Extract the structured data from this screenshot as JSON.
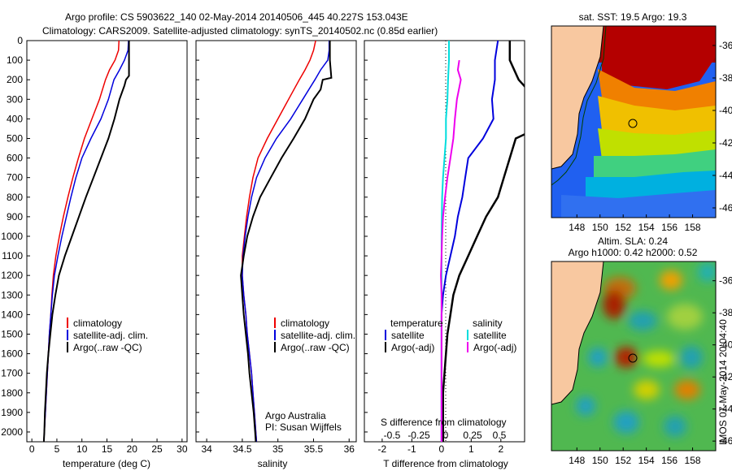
{
  "header": {
    "line1": "Argo profile: CS 5903622_140 02-May-2014 20140506_445 40.227S 153.043E",
    "line2": "Climatology: CARS2009. Satellite-adjusted climatology: synTS_20140502.nc (0.85d earlier)"
  },
  "colors": {
    "climatology": "#ee0000",
    "satellite": "#0000dd",
    "argo": "#000000",
    "sal_satellite": "#00dddd",
    "sal_argo": "#ee00ee",
    "land": "#f8c8a0"
  },
  "depth_ticks": [
    "0",
    "100",
    "200",
    "300",
    "400",
    "500",
    "600",
    "700",
    "800",
    "900",
    "1000",
    "1100",
    "1200",
    "1300",
    "1400",
    "1500",
    "1600",
    "1700",
    "1800",
    "1900",
    "2000"
  ],
  "panels": {
    "temperature": {
      "xlabel": "temperature (deg C)",
      "ticks": [
        "0",
        "5",
        "10",
        "15",
        "20",
        "25",
        "30"
      ]
    },
    "salinity": {
      "xlabel": "salinity",
      "ticks": [
        "34",
        "34.5",
        "35",
        "35.5",
        "36"
      ],
      "credit1": "Argo Australia",
      "credit2": "PI: Susan Wijffels"
    },
    "difference": {
      "xlabel_bottom": "T difference from climatology",
      "xlabel_top": "S difference from climatology",
      "t_ticks": [
        "-2",
        "-1",
        "0",
        "1",
        "2"
      ],
      "s_ticks": [
        "-0.5",
        "-0.25",
        "0",
        "0.25",
        "0.5"
      ]
    }
  },
  "legend": {
    "climatology": "climatology",
    "satellite_adj": "satellite-adj. clim.",
    "argo": "Argo(..raw -QC)",
    "temperature_head": "temperature",
    "salinity_head": "salinity",
    "satellite": "satellite",
    "argo_adj": "Argo(-adj)"
  },
  "maps": {
    "sst": {
      "title": "sat. SST: 19.5  Argo: 19.3",
      "lat_ticks": [
        "-36",
        "-38",
        "-40",
        "-42",
        "-44",
        "-46"
      ],
      "lon_ticks": [
        "148",
        "150",
        "152",
        "154",
        "156",
        "158"
      ]
    },
    "sla": {
      "title1": "Altim. SLA: 0.24",
      "title2": "Argo h1000: 0.42  h2000: 0.52",
      "lat_ticks": [
        "-36",
        "-38",
        "-40",
        "-42",
        "-44",
        "-46"
      ],
      "lon_ticks": [
        "148",
        "150",
        "152",
        "154",
        "156",
        "158"
      ]
    }
  },
  "stamp": "IMOS 07-May-2014 20:04:40",
  "chart_data": [
    {
      "type": "line",
      "title": "",
      "xlabel": "temperature (deg C)",
      "ylabel": "",
      "xlim": [
        -1,
        31
      ],
      "ylim": [
        2050,
        0
      ],
      "series": [
        {
          "name": "climatology",
          "points": [
            [
              17.4,
              0
            ],
            [
              17.3,
              50
            ],
            [
              16.6,
              100
            ],
            [
              15.5,
              150
            ],
            [
              14.7,
              200
            ],
            [
              13.5,
              300
            ],
            [
              12,
              400
            ],
            [
              10.5,
              500
            ],
            [
              9.3,
              600
            ],
            [
              8.2,
              700
            ],
            [
              7.2,
              800
            ],
            [
              6.3,
              900
            ],
            [
              5.5,
              1000
            ],
            [
              4.8,
              1100
            ],
            [
              4.3,
              1200
            ],
            [
              4,
              1300
            ],
            [
              3.8,
              1400
            ],
            [
              3.5,
              1500
            ],
            [
              3.3,
              1600
            ],
            [
              3.1,
              1700
            ],
            [
              2.9,
              1800
            ],
            [
              2.7,
              1900
            ],
            [
              2.5,
              2000
            ],
            [
              2.4,
              2050
            ]
          ]
        },
        {
          "name": "satellite-adj. clim.",
          "points": [
            [
              19.3,
              0
            ],
            [
              19.2,
              50
            ],
            [
              18.5,
              100
            ],
            [
              17.5,
              150
            ],
            [
              16.4,
              200
            ],
            [
              15.3,
              300
            ],
            [
              13.8,
              400
            ],
            [
              11.8,
              500
            ],
            [
              10,
              600
            ],
            [
              8.8,
              700
            ],
            [
              7.8,
              800
            ],
            [
              6.9,
              900
            ],
            [
              6,
              1000
            ],
            [
              5.2,
              1100
            ],
            [
              4.5,
              1200
            ],
            [
              4.1,
              1300
            ],
            [
              3.8,
              1400
            ],
            [
              3.5,
              1500
            ],
            [
              3.3,
              1600
            ],
            [
              3.1,
              1700
            ],
            [
              2.9,
              1800
            ],
            [
              2.7,
              1900
            ],
            [
              2.5,
              2000
            ],
            [
              2.4,
              2050
            ]
          ]
        },
        {
          "name": "Argo(..raw -QC)",
          "points": [
            [
              19.4,
              0
            ],
            [
              19.4,
              30
            ],
            [
              19.4,
              100
            ],
            [
              19.4,
              180
            ],
            [
              18.8,
              200
            ],
            [
              18.5,
              230
            ],
            [
              17.5,
              300
            ],
            [
              16.5,
              400
            ],
            [
              15.3,
              500
            ],
            [
              13.8,
              600
            ],
            [
              12.3,
              700
            ],
            [
              10.8,
              800
            ],
            [
              9.4,
              900
            ],
            [
              8,
              1000
            ],
            [
              6.6,
              1100
            ],
            [
              5.4,
              1200
            ],
            [
              4.7,
              1300
            ],
            [
              4.1,
              1400
            ],
            [
              3.7,
              1500
            ],
            [
              3.3,
              1600
            ],
            [
              3,
              1700
            ],
            [
              2.8,
              1800
            ],
            [
              2.6,
              1900
            ],
            [
              2.5,
              2000
            ],
            [
              2.4,
              2050
            ]
          ]
        }
      ]
    },
    {
      "type": "line",
      "title": "",
      "xlabel": "salinity",
      "ylabel": "",
      "xlim": [
        33.85,
        36.1
      ],
      "ylim": [
        2050,
        0
      ],
      "series": [
        {
          "name": "climatology",
          "points": [
            [
              35.53,
              0
            ],
            [
              35.5,
              50
            ],
            [
              35.45,
              100
            ],
            [
              35.38,
              150
            ],
            [
              35.3,
              200
            ],
            [
              35.15,
              300
            ],
            [
              35,
              400
            ],
            [
              34.85,
              500
            ],
            [
              34.72,
              600
            ],
            [
              34.65,
              700
            ],
            [
              34.6,
              800
            ],
            [
              34.56,
              900
            ],
            [
              34.53,
              1000
            ],
            [
              34.5,
              1100
            ],
            [
              34.5,
              1200
            ],
            [
              34.52,
              1300
            ],
            [
              34.55,
              1400
            ],
            [
              34.57,
              1500
            ],
            [
              34.6,
              1600
            ],
            [
              34.63,
              1700
            ],
            [
              34.65,
              1800
            ],
            [
              34.67,
              1900
            ],
            [
              34.69,
              2000
            ],
            [
              34.7,
              2050
            ]
          ]
        },
        {
          "name": "satellite-adj. clim.",
          "points": [
            [
              35.72,
              0
            ],
            [
              35.72,
              50
            ],
            [
              35.7,
              100
            ],
            [
              35.6,
              150
            ],
            [
              35.52,
              200
            ],
            [
              35.35,
              300
            ],
            [
              35.18,
              400
            ],
            [
              34.98,
              500
            ],
            [
              34.82,
              600
            ],
            [
              34.7,
              700
            ],
            [
              34.63,
              800
            ],
            [
              34.58,
              900
            ],
            [
              34.54,
              1000
            ],
            [
              34.51,
              1100
            ],
            [
              34.5,
              1200
            ],
            [
              34.52,
              1300
            ],
            [
              34.55,
              1400
            ],
            [
              34.57,
              1500
            ],
            [
              34.6,
              1600
            ],
            [
              34.63,
              1700
            ],
            [
              34.65,
              1800
            ],
            [
              34.67,
              1900
            ],
            [
              34.69,
              2000
            ],
            [
              34.7,
              2050
            ]
          ]
        },
        {
          "name": "Argo(..raw -QC)",
          "points": [
            [
              35.73,
              0
            ],
            [
              35.73,
              50
            ],
            [
              35.73,
              100
            ],
            [
              35.75,
              190
            ],
            [
              35.63,
              200
            ],
            [
              35.6,
              250
            ],
            [
              35.5,
              300
            ],
            [
              35.38,
              400
            ],
            [
              35.22,
              500
            ],
            [
              35.05,
              600
            ],
            [
              34.9,
              700
            ],
            [
              34.75,
              800
            ],
            [
              34.65,
              900
            ],
            [
              34.57,
              1000
            ],
            [
              34.52,
              1100
            ],
            [
              34.48,
              1200
            ],
            [
              34.5,
              1300
            ],
            [
              34.52,
              1400
            ],
            [
              34.55,
              1500
            ],
            [
              34.58,
              1600
            ],
            [
              34.6,
              1700
            ],
            [
              34.63,
              1800
            ],
            [
              34.66,
              1900
            ],
            [
              34.68,
              2000
            ],
            [
              34.69,
              2050
            ]
          ]
        }
      ]
    },
    {
      "type": "line",
      "title": "",
      "xlabel": "T difference from climatology",
      "ylabel": "",
      "xlim": [
        -2.6,
        2.8
      ],
      "ylim": [
        2050,
        0
      ],
      "series": [
        {
          "name": "temperature satellite",
          "points": [
            [
              1.9,
              0
            ],
            [
              1.8,
              100
            ],
            [
              1.8,
              200
            ],
            [
              1.7,
              300
            ],
            [
              1.75,
              400
            ],
            [
              1.4,
              500
            ],
            [
              0.9,
              600
            ],
            [
              0.8,
              700
            ],
            [
              0.7,
              800
            ],
            [
              0.55,
              900
            ],
            [
              0.45,
              1000
            ],
            [
              0.3,
              1100
            ],
            [
              0.15,
              1200
            ],
            [
              0.05,
              1300
            ],
            [
              0,
              1400
            ],
            [
              0,
              1600
            ],
            [
              0,
              2000
            ],
            [
              0,
              2050
            ]
          ]
        },
        {
          "name": "temperature Argo(-adj)",
          "points": [
            [
              2.3,
              0
            ],
            [
              2.3,
              100
            ],
            [
              2.6,
              200
            ],
            [
              3.2,
              300
            ],
            [
              3.2,
              450
            ],
            [
              2.5,
              500
            ],
            [
              2.3,
              600
            ],
            [
              2.1,
              700
            ],
            [
              1.9,
              800
            ],
            [
              1.5,
              900
            ],
            [
              1.2,
              1000
            ],
            [
              0.9,
              1100
            ],
            [
              0.6,
              1200
            ],
            [
              0.4,
              1300
            ],
            [
              0.3,
              1400
            ],
            [
              0.2,
              1500
            ],
            [
              0.15,
              1600
            ],
            [
              0.1,
              1700
            ],
            [
              0.05,
              1800
            ],
            [
              0.05,
              2000
            ],
            [
              0.05,
              2050
            ]
          ]
        },
        {
          "name": "salinity satellite",
          "points": [
            [
              0.25,
              0
            ],
            [
              0.25,
              100
            ],
            [
              0.22,
              200
            ],
            [
              0.2,
              300
            ],
            [
              0.15,
              400
            ],
            [
              0.15,
              500
            ],
            [
              0.1,
              600
            ],
            [
              0.05,
              700
            ],
            [
              0.02,
              800
            ],
            [
              0.01,
              900
            ],
            [
              0,
              1000
            ],
            [
              0,
              1200
            ],
            [
              0,
              2050
            ]
          ]
        },
        {
          "name": "salinity Argo(-adj)",
          "points": [
            [
              0.6,
              100
            ],
            [
              0.55,
              150
            ],
            [
              0.65,
              200
            ],
            [
              0.52,
              300
            ],
            [
              0.45,
              400
            ],
            [
              0.4,
              500
            ],
            [
              0.3,
              600
            ],
            [
              0.2,
              700
            ],
            [
              0.12,
              800
            ],
            [
              0.05,
              900
            ],
            [
              0.02,
              1000
            ],
            [
              0,
              1100
            ],
            [
              -0.02,
              1200
            ],
            [
              0,
              1300
            ],
            [
              0,
              2050
            ]
          ]
        }
      ]
    }
  ]
}
